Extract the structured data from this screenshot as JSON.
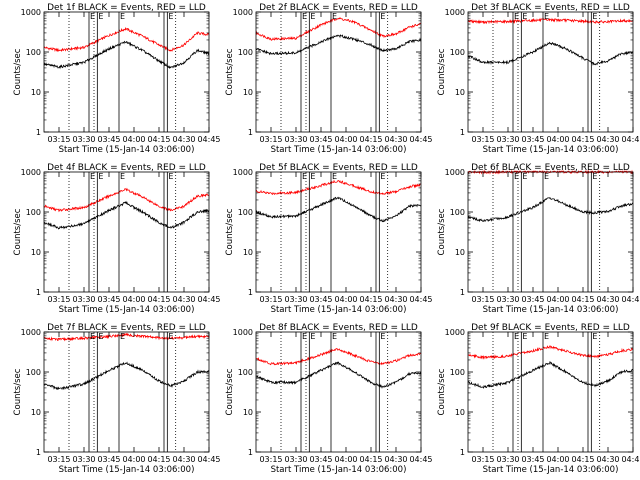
{
  "chart_data": {
    "type": "line",
    "layout": "3x3 grid",
    "y_scale": "log",
    "ylim": [
      1,
      1000
    ],
    "y_ticks": [
      "1",
      "10",
      "100",
      "1000"
    ],
    "x_ticks": [
      "03:15",
      "03:30",
      "03:45",
      "04:00",
      "04:15",
      "04:30",
      "04:45"
    ],
    "xlim": [
      "03:06:00",
      "04:45:00"
    ],
    "xlabel": "Start Time (15-Jan-14 03:06:00)",
    "ylabel": "Counts/sec",
    "series_colors": {
      "events": "#000000",
      "lld": "#ff0000"
    },
    "marker_lines_solid": [
      "03:33",
      "03:38",
      "03:51",
      "04:18",
      "04:20"
    ],
    "marker_lines_dotted": [
      "03:21",
      "03:36",
      "04:25"
    ],
    "panel_flag_label": "E",
    "panels": [
      {
        "title": "Det 1f BLACK = Events, RED = LLD",
        "events": {
          "t": [
            "03:06",
            "03:15",
            "03:30",
            "03:45",
            "03:55",
            "04:05",
            "04:15",
            "04:22",
            "04:30",
            "04:38",
            "04:45"
          ],
          "v": [
            50,
            42,
            55,
            120,
            180,
            110,
            60,
            40,
            55,
            110,
            90
          ]
        },
        "lld": {
          "t": [
            "03:06",
            "03:15",
            "03:30",
            "03:45",
            "03:55",
            "04:05",
            "04:15",
            "04:22",
            "04:30",
            "04:38",
            "04:45"
          ],
          "v": [
            130,
            110,
            130,
            260,
            380,
            250,
            150,
            110,
            150,
            300,
            270
          ]
        }
      },
      {
        "title": "Det 2f BLACK = Events, RED = LLD",
        "events": {
          "t": [
            "03:06",
            "03:15",
            "03:30",
            "03:45",
            "03:55",
            "04:05",
            "04:15",
            "04:22",
            "04:30",
            "04:38",
            "04:45"
          ],
          "v": [
            120,
            90,
            95,
            180,
            260,
            210,
            150,
            110,
            120,
            180,
            200
          ]
        },
        "lld": {
          "t": [
            "03:06",
            "03:15",
            "03:30",
            "03:45",
            "03:55",
            "04:05",
            "04:15",
            "04:22",
            "04:30",
            "04:38",
            "04:45"
          ],
          "v": [
            300,
            210,
            220,
            480,
            700,
            560,
            350,
            250,
            280,
            420,
            500
          ]
        }
      },
      {
        "title": "Det 3f BLACK = Events, RED = LLD",
        "events": {
          "t": [
            "03:06",
            "03:15",
            "03:30",
            "03:45",
            "03:55",
            "04:05",
            "04:15",
            "04:22",
            "04:30",
            "04:38",
            "04:45"
          ],
          "v": [
            80,
            55,
            55,
            100,
            170,
            120,
            70,
            50,
            60,
            90,
            100
          ]
        },
        "lld": {
          "t": [
            "03:06",
            "03:15",
            "03:30",
            "03:45",
            "03:55",
            "04:05",
            "04:15",
            "04:22",
            "04:30",
            "04:38",
            "04:45"
          ],
          "v": [
            600,
            560,
            580,
            620,
            640,
            620,
            590,
            560,
            570,
            600,
            610
          ]
        }
      },
      {
        "title": "Det 4f BLACK = Events, RED = LLD",
        "events": {
          "t": [
            "03:06",
            "03:15",
            "03:30",
            "03:45",
            "03:55",
            "04:05",
            "04:15",
            "04:22",
            "04:30",
            "04:38",
            "04:45"
          ],
          "v": [
            55,
            40,
            50,
            110,
            170,
            100,
            55,
            40,
            55,
            100,
            110
          ]
        },
        "lld": {
          "t": [
            "03:06",
            "03:15",
            "03:30",
            "03:45",
            "03:55",
            "04:05",
            "04:15",
            "04:22",
            "04:30",
            "04:38",
            "04:45"
          ],
          "v": [
            140,
            110,
            130,
            250,
            370,
            240,
            140,
            110,
            140,
            250,
            270
          ]
        }
      },
      {
        "title": "Det 5f BLACK = Events, RED = LLD",
        "events": {
          "t": [
            "03:06",
            "03:15",
            "03:30",
            "03:45",
            "03:55",
            "04:05",
            "04:15",
            "04:22",
            "04:30",
            "04:38",
            "04:45"
          ],
          "v": [
            100,
            75,
            80,
            150,
            230,
            140,
            80,
            60,
            80,
            140,
            150
          ]
        },
        "lld": {
          "t": [
            "03:06",
            "03:15",
            "03:30",
            "03:45",
            "03:55",
            "04:05",
            "04:15",
            "04:22",
            "04:30",
            "04:38",
            "04:45"
          ],
          "v": [
            330,
            290,
            310,
            460,
            600,
            450,
            320,
            290,
            320,
            430,
            480
          ]
        }
      },
      {
        "title": "Det 6f BLACK = Events, RED = LLD",
        "events": {
          "t": [
            "03:06",
            "03:15",
            "03:30",
            "03:45",
            "03:55",
            "04:05",
            "04:15",
            "04:22",
            "04:30",
            "04:38",
            "04:45"
          ],
          "v": [
            75,
            60,
            75,
            130,
            230,
            150,
            100,
            95,
            105,
            140,
            160
          ]
        },
        "lld": {
          "t": [
            "03:06",
            "03:15",
            "03:30",
            "03:45",
            "03:55",
            "04:05",
            "04:15",
            "04:22",
            "04:30",
            "04:38",
            "04:45"
          ],
          "v": [
            1000,
            990,
            1000,
            1010,
            1020,
            1010,
            1000,
            990,
            1000,
            1010,
            1000
          ]
        }
      },
      {
        "title": "Det 7f BLACK = Events, RED = LLD",
        "events": {
          "t": [
            "03:06",
            "03:15",
            "03:30",
            "03:45",
            "03:55",
            "04:05",
            "04:15",
            "04:22",
            "04:30",
            "04:38",
            "04:45"
          ],
          "v": [
            50,
            38,
            50,
            110,
            170,
            110,
            60,
            45,
            60,
            100,
            105
          ]
        },
        "lld": {
          "t": [
            "03:06",
            "03:15",
            "03:30",
            "03:45",
            "03:55",
            "04:05",
            "04:15",
            "04:22",
            "04:30",
            "04:38",
            "04:45"
          ],
          "v": [
            700,
            650,
            700,
            780,
            850,
            780,
            720,
            700,
            720,
            780,
            760
          ]
        }
      },
      {
        "title": "Det 8f BLACK = Events, RED = LLD",
        "events": {
          "t": [
            "03:06",
            "03:15",
            "03:30",
            "03:45",
            "03:55",
            "04:05",
            "04:15",
            "04:22",
            "04:30",
            "04:38",
            "04:45"
          ],
          "v": [
            80,
            55,
            55,
            110,
            170,
            100,
            55,
            42,
            55,
            90,
            95
          ]
        },
        "lld": {
          "t": [
            "03:06",
            "03:15",
            "03:30",
            "03:45",
            "03:55",
            "04:05",
            "04:15",
            "04:22",
            "04:30",
            "04:38",
            "04:45"
          ],
          "v": [
            220,
            160,
            170,
            270,
            380,
            260,
            180,
            160,
            190,
            260,
            280
          ]
        }
      },
      {
        "title": "Det 9f BLACK = Events, RED = LLD",
        "events": {
          "t": [
            "03:06",
            "03:15",
            "03:30",
            "03:45",
            "03:55",
            "04:05",
            "04:15",
            "04:22",
            "04:30",
            "04:38",
            "04:45"
          ],
          "v": [
            55,
            42,
            55,
            110,
            170,
            100,
            55,
            45,
            60,
            100,
            110
          ]
        },
        "lld": {
          "t": [
            "03:06",
            "03:15",
            "03:30",
            "03:45",
            "03:55",
            "04:05",
            "04:15",
            "04:22",
            "04:30",
            "04:38",
            "04:45"
          ],
          "v": [
            270,
            230,
            250,
            340,
            430,
            330,
            260,
            240,
            270,
            340,
            370
          ]
        }
      }
    ]
  }
}
